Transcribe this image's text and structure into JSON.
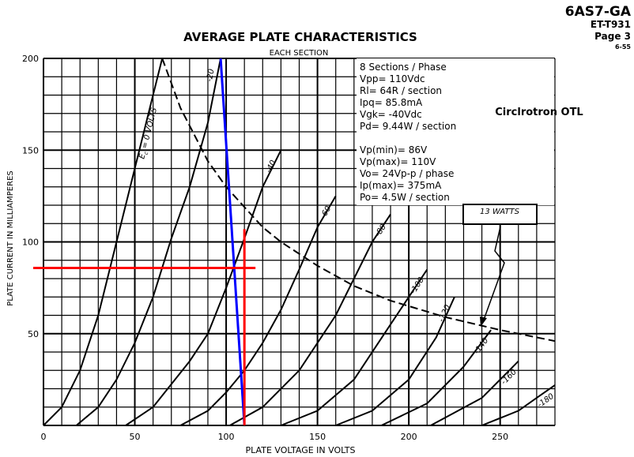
{
  "header": {
    "tube": "6AS7-GA",
    "code": "ET-T931",
    "page": "Page 3",
    "date": "6-55"
  },
  "design": {
    "label": "Circlrotron OTL",
    "params_block_1": [
      "8 Sections / Phase",
      "Vpp= 110Vdc",
      "Rl=     64R / section",
      "Ipq=    85.8mA",
      "Vgk= -40Vdc",
      "Pd=      9.44W / section"
    ],
    "params_block_2": [
      "Vp(min)=  86V",
      "Vp(max)= 110V",
      "Vo=          24Vp-p / phase",
      "Ip(max)= 375mA",
      "Po=          4.5W / section"
    ]
  },
  "colors": {
    "curve": "#000000",
    "grid": "#000000",
    "load_line": "#0000ff",
    "operating_point": "#ff0000"
  },
  "chart_data": {
    "type": "line",
    "title": "AVERAGE PLATE CHARACTERISTICS",
    "subtitle": "EACH SECTION",
    "xlabel": "PLATE VOLTAGE IN VOLTS",
    "ylabel": "PLATE CURRENT IN MILLIAMPERES",
    "xlim": [
      0,
      280
    ],
    "ylim": [
      0,
      200
    ],
    "x_ticks": [
      0,
      50,
      100,
      150,
      200,
      250
    ],
    "y_ticks": [
      50,
      100,
      150,
      200
    ],
    "x_minor_step": 10,
    "y_minor_step": 10,
    "grid": true,
    "series": [
      {
        "name": "Ec = 0 VOLTS",
        "label_lines": [
          "E",
          "c",
          " = 0 VOLTS"
        ],
        "values": [
          [
            0,
            0
          ],
          [
            10,
            10
          ],
          [
            20,
            30
          ],
          [
            30,
            60
          ],
          [
            40,
            100
          ],
          [
            50,
            140
          ],
          [
            60,
            180
          ],
          [
            65,
            200
          ]
        ]
      },
      {
        "name": "-20",
        "values": [
          [
            18,
            0
          ],
          [
            30,
            10
          ],
          [
            40,
            25
          ],
          [
            50,
            45
          ],
          [
            60,
            70
          ],
          [
            70,
            102
          ],
          [
            80,
            130
          ],
          [
            90,
            165
          ],
          [
            97,
            200
          ]
        ]
      },
      {
        "name": "-40",
        "values": [
          [
            45,
            0
          ],
          [
            60,
            10
          ],
          [
            80,
            35
          ],
          [
            90,
            50
          ],
          [
            100,
            75
          ],
          [
            110,
            102
          ],
          [
            120,
            130
          ],
          [
            130,
            150
          ]
        ]
      },
      {
        "name": "-60",
        "values": [
          [
            75,
            0
          ],
          [
            90,
            8
          ],
          [
            100,
            18
          ],
          [
            110,
            30
          ],
          [
            120,
            45
          ],
          [
            130,
            63
          ],
          [
            140,
            85
          ],
          [
            150,
            108
          ],
          [
            160,
            125
          ]
        ]
      },
      {
        "name": "-80",
        "values": [
          [
            102,
            0
          ],
          [
            120,
            10
          ],
          [
            140,
            30
          ],
          [
            160,
            60
          ],
          [
            170,
            80
          ],
          [
            180,
            100
          ],
          [
            190,
            115
          ]
        ]
      },
      {
        "name": "-100",
        "values": [
          [
            130,
            0
          ],
          [
            150,
            8
          ],
          [
            170,
            25
          ],
          [
            190,
            55
          ],
          [
            200,
            70
          ],
          [
            210,
            85
          ]
        ]
      },
      {
        "name": "-120",
        "values": [
          [
            160,
            0
          ],
          [
            180,
            8
          ],
          [
            200,
            25
          ],
          [
            215,
            48
          ],
          [
            225,
            70
          ]
        ]
      },
      {
        "name": "-140",
        "values": [
          [
            185,
            0
          ],
          [
            210,
            12
          ],
          [
            230,
            32
          ],
          [
            245,
            52
          ]
        ]
      },
      {
        "name": "-160",
        "values": [
          [
            212,
            0
          ],
          [
            240,
            15
          ],
          [
            255,
            30
          ],
          [
            260,
            35
          ]
        ]
      },
      {
        "name": "-180",
        "values": [
          [
            240,
            0
          ],
          [
            260,
            8
          ],
          [
            270,
            15
          ],
          [
            280,
            22
          ]
        ]
      }
    ],
    "power_limit": {
      "label": "13 WATTS",
      "values": [
        [
          65,
          200
        ],
        [
          75,
          173
        ],
        [
          90,
          144
        ],
        [
          100,
          130
        ],
        [
          120,
          108
        ],
        [
          130,
          100
        ],
        [
          150,
          87
        ],
        [
          170,
          76
        ],
        [
          190,
          68
        ],
        [
          220,
          59
        ],
        [
          250,
          52
        ],
        [
          280,
          46
        ]
      ]
    },
    "load_line": {
      "values": [
        [
          97,
          200
        ],
        [
          110,
          0
        ]
      ]
    },
    "operating_point": {
      "x": 110,
      "y": 85.8
    }
  }
}
